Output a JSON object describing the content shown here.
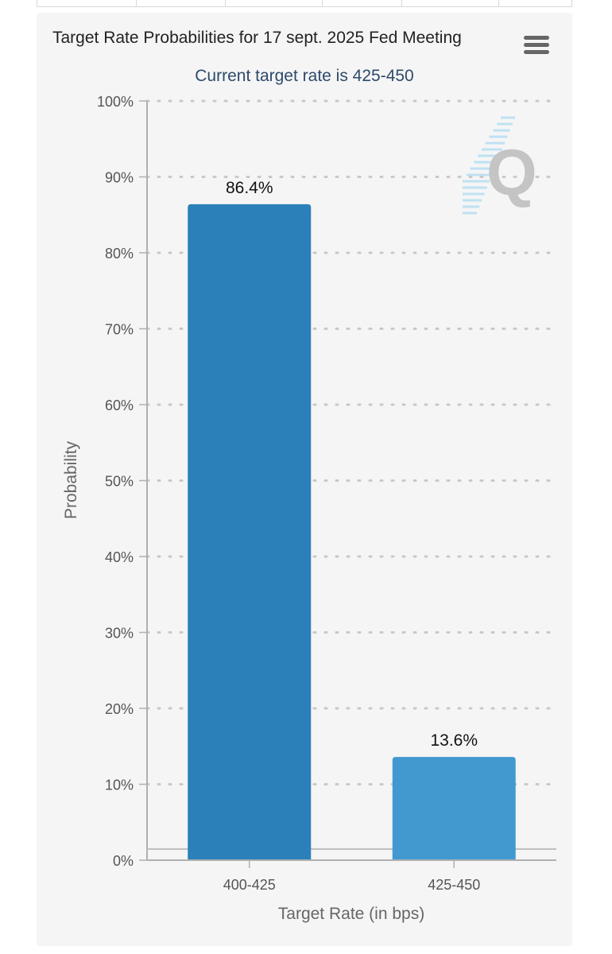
{
  "header": {
    "title": "Target Rate Probabilities for 17 sept. 2025 Fed Meeting",
    "subtitle": "Current target rate is 425-450",
    "menu_icon": "hamburger-menu-icon"
  },
  "colors": {
    "bar_primary": "#2b80b9",
    "bar_secondary": "#4299d0",
    "card_background": "#f5f5f5",
    "subtitle": "#2e4a6b",
    "watermark_logo": "cme-fedwatch-q-logo"
  },
  "chart_data": {
    "type": "bar",
    "title": "Target Rate Probabilities for 17 sept. 2025 Fed Meeting",
    "subtitle": "Current target rate is 425-450",
    "xlabel": "Target Rate (in bps)",
    "ylabel": "Probability",
    "categories": [
      "400-425",
      "425-450"
    ],
    "values": [
      86.4,
      13.6
    ],
    "data_labels": [
      "86.4%",
      "13.6%"
    ],
    "bar_colors": [
      "#2b80b9",
      "#4299d0"
    ],
    "ylim": [
      0,
      100
    ],
    "yticks": [
      0,
      10,
      20,
      30,
      40,
      50,
      60,
      70,
      80,
      90,
      100
    ],
    "ytick_labels": [
      "0%",
      "10%",
      "20%",
      "30%",
      "40%",
      "50%",
      "60%",
      "70%",
      "80%",
      "90%",
      "100%"
    ],
    "grid": "dotted horizontal"
  }
}
